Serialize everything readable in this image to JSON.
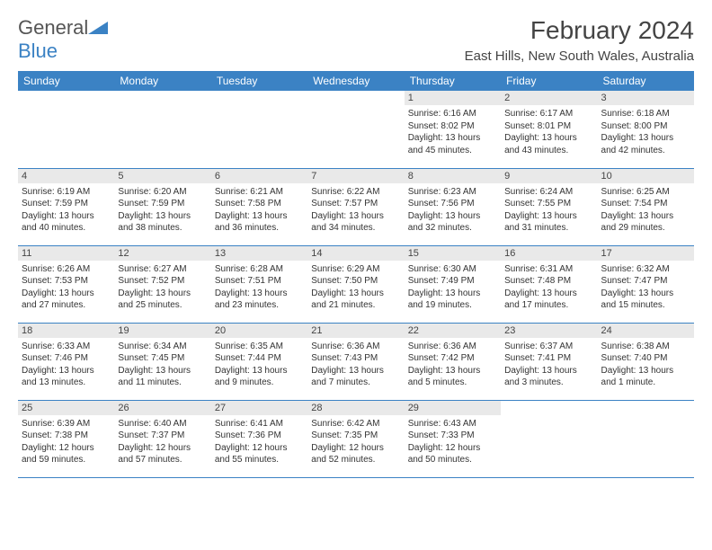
{
  "brand": {
    "name_part1": "General",
    "name_part2": "Blue"
  },
  "title": "February 2024",
  "location": "East Hills, New South Wales, Australia",
  "colors": {
    "header_bg": "#3b82c4",
    "daynum_bg": "#e9e9e9",
    "border": "#3b82c4",
    "text": "#333333"
  },
  "weekdays": [
    "Sunday",
    "Monday",
    "Tuesday",
    "Wednesday",
    "Thursday",
    "Friday",
    "Saturday"
  ],
  "weeks": [
    [
      {
        "day": "",
        "sunrise": "",
        "sunset": "",
        "daylight": ""
      },
      {
        "day": "",
        "sunrise": "",
        "sunset": "",
        "daylight": ""
      },
      {
        "day": "",
        "sunrise": "",
        "sunset": "",
        "daylight": ""
      },
      {
        "day": "",
        "sunrise": "",
        "sunset": "",
        "daylight": ""
      },
      {
        "day": "1",
        "sunrise": "Sunrise: 6:16 AM",
        "sunset": "Sunset: 8:02 PM",
        "daylight": "Daylight: 13 hours and 45 minutes."
      },
      {
        "day": "2",
        "sunrise": "Sunrise: 6:17 AM",
        "sunset": "Sunset: 8:01 PM",
        "daylight": "Daylight: 13 hours and 43 minutes."
      },
      {
        "day": "3",
        "sunrise": "Sunrise: 6:18 AM",
        "sunset": "Sunset: 8:00 PM",
        "daylight": "Daylight: 13 hours and 42 minutes."
      }
    ],
    [
      {
        "day": "4",
        "sunrise": "Sunrise: 6:19 AM",
        "sunset": "Sunset: 7:59 PM",
        "daylight": "Daylight: 13 hours and 40 minutes."
      },
      {
        "day": "5",
        "sunrise": "Sunrise: 6:20 AM",
        "sunset": "Sunset: 7:59 PM",
        "daylight": "Daylight: 13 hours and 38 minutes."
      },
      {
        "day": "6",
        "sunrise": "Sunrise: 6:21 AM",
        "sunset": "Sunset: 7:58 PM",
        "daylight": "Daylight: 13 hours and 36 minutes."
      },
      {
        "day": "7",
        "sunrise": "Sunrise: 6:22 AM",
        "sunset": "Sunset: 7:57 PM",
        "daylight": "Daylight: 13 hours and 34 minutes."
      },
      {
        "day": "8",
        "sunrise": "Sunrise: 6:23 AM",
        "sunset": "Sunset: 7:56 PM",
        "daylight": "Daylight: 13 hours and 32 minutes."
      },
      {
        "day": "9",
        "sunrise": "Sunrise: 6:24 AM",
        "sunset": "Sunset: 7:55 PM",
        "daylight": "Daylight: 13 hours and 31 minutes."
      },
      {
        "day": "10",
        "sunrise": "Sunrise: 6:25 AM",
        "sunset": "Sunset: 7:54 PM",
        "daylight": "Daylight: 13 hours and 29 minutes."
      }
    ],
    [
      {
        "day": "11",
        "sunrise": "Sunrise: 6:26 AM",
        "sunset": "Sunset: 7:53 PM",
        "daylight": "Daylight: 13 hours and 27 minutes."
      },
      {
        "day": "12",
        "sunrise": "Sunrise: 6:27 AM",
        "sunset": "Sunset: 7:52 PM",
        "daylight": "Daylight: 13 hours and 25 minutes."
      },
      {
        "day": "13",
        "sunrise": "Sunrise: 6:28 AM",
        "sunset": "Sunset: 7:51 PM",
        "daylight": "Daylight: 13 hours and 23 minutes."
      },
      {
        "day": "14",
        "sunrise": "Sunrise: 6:29 AM",
        "sunset": "Sunset: 7:50 PM",
        "daylight": "Daylight: 13 hours and 21 minutes."
      },
      {
        "day": "15",
        "sunrise": "Sunrise: 6:30 AM",
        "sunset": "Sunset: 7:49 PM",
        "daylight": "Daylight: 13 hours and 19 minutes."
      },
      {
        "day": "16",
        "sunrise": "Sunrise: 6:31 AM",
        "sunset": "Sunset: 7:48 PM",
        "daylight": "Daylight: 13 hours and 17 minutes."
      },
      {
        "day": "17",
        "sunrise": "Sunrise: 6:32 AM",
        "sunset": "Sunset: 7:47 PM",
        "daylight": "Daylight: 13 hours and 15 minutes."
      }
    ],
    [
      {
        "day": "18",
        "sunrise": "Sunrise: 6:33 AM",
        "sunset": "Sunset: 7:46 PM",
        "daylight": "Daylight: 13 hours and 13 minutes."
      },
      {
        "day": "19",
        "sunrise": "Sunrise: 6:34 AM",
        "sunset": "Sunset: 7:45 PM",
        "daylight": "Daylight: 13 hours and 11 minutes."
      },
      {
        "day": "20",
        "sunrise": "Sunrise: 6:35 AM",
        "sunset": "Sunset: 7:44 PM",
        "daylight": "Daylight: 13 hours and 9 minutes."
      },
      {
        "day": "21",
        "sunrise": "Sunrise: 6:36 AM",
        "sunset": "Sunset: 7:43 PM",
        "daylight": "Daylight: 13 hours and 7 minutes."
      },
      {
        "day": "22",
        "sunrise": "Sunrise: 6:36 AM",
        "sunset": "Sunset: 7:42 PM",
        "daylight": "Daylight: 13 hours and 5 minutes."
      },
      {
        "day": "23",
        "sunrise": "Sunrise: 6:37 AM",
        "sunset": "Sunset: 7:41 PM",
        "daylight": "Daylight: 13 hours and 3 minutes."
      },
      {
        "day": "24",
        "sunrise": "Sunrise: 6:38 AM",
        "sunset": "Sunset: 7:40 PM",
        "daylight": "Daylight: 13 hours and 1 minute."
      }
    ],
    [
      {
        "day": "25",
        "sunrise": "Sunrise: 6:39 AM",
        "sunset": "Sunset: 7:38 PM",
        "daylight": "Daylight: 12 hours and 59 minutes."
      },
      {
        "day": "26",
        "sunrise": "Sunrise: 6:40 AM",
        "sunset": "Sunset: 7:37 PM",
        "daylight": "Daylight: 12 hours and 57 minutes."
      },
      {
        "day": "27",
        "sunrise": "Sunrise: 6:41 AM",
        "sunset": "Sunset: 7:36 PM",
        "daylight": "Daylight: 12 hours and 55 minutes."
      },
      {
        "day": "28",
        "sunrise": "Sunrise: 6:42 AM",
        "sunset": "Sunset: 7:35 PM",
        "daylight": "Daylight: 12 hours and 52 minutes."
      },
      {
        "day": "29",
        "sunrise": "Sunrise: 6:43 AM",
        "sunset": "Sunset: 7:33 PM",
        "daylight": "Daylight: 12 hours and 50 minutes."
      },
      {
        "day": "",
        "sunrise": "",
        "sunset": "",
        "daylight": ""
      },
      {
        "day": "",
        "sunrise": "",
        "sunset": "",
        "daylight": ""
      }
    ]
  ]
}
